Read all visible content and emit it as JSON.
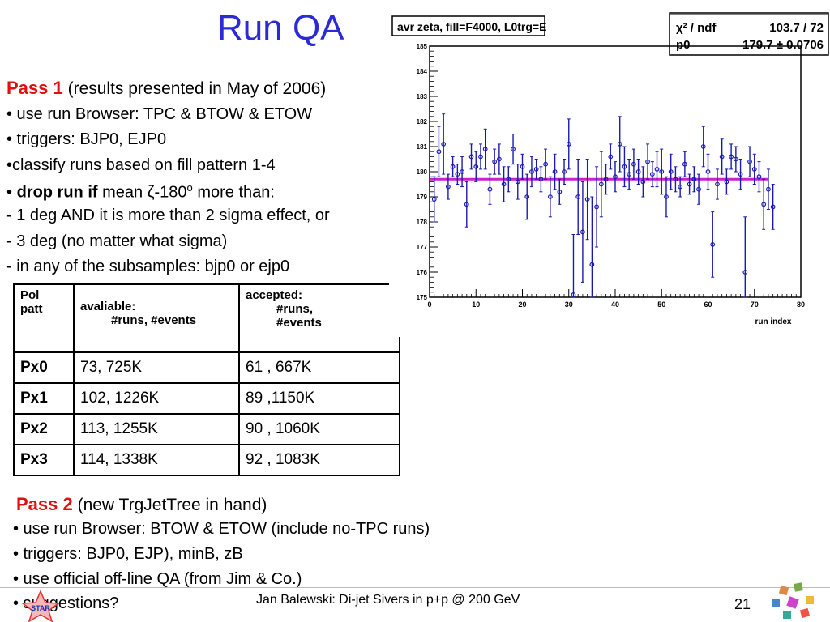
{
  "title": "Run QA",
  "pass1": {
    "heading": "Pass 1",
    "note": "(results presented in May of 2006)",
    "lines": [
      "• use run Browser: TPC & BTOW & ETOW",
      "• triggers: BJP0, EJP0",
      "•classify runs based on fill pattern 1-4"
    ],
    "drop_prefix": "• ",
    "drop_bold": "drop run if",
    "drop_mid": " mean ζ-180",
    "drop_sup": "o",
    "drop_end": " more than:",
    "criteria": [
      "- 1 deg AND it is more than 2 sigma effect, or",
      "- 3 deg (no matter what sigma)",
      "- in any of the subsamples: bjp0 or ejp0"
    ]
  },
  "table": {
    "headers": {
      "col1_a": "Pol",
      "col1_b": "patt",
      "col2_a": "avaliable:",
      "col2_b": "#runs, #events",
      "col3_a": "accepted:",
      "col3_b": "#runs,",
      "col3_c": "#events"
    },
    "rows": [
      {
        "pol": "Px0",
        "available": "73, 725K",
        "accepted": "61 , 667K"
      },
      {
        "pol": "Px1",
        "available": "102, 1226K",
        "accepted": "89 ,1150K"
      },
      {
        "pol": "Px2",
        "available": "113, 1255K",
        "accepted": "90 , 1060K"
      },
      {
        "pol": "Px3",
        "available": "114, 1338K",
        "accepted": "92 , 1083K"
      }
    ]
  },
  "pass2": {
    "heading": "Pass 2",
    "note": "(new TrgJetTree in hand)",
    "lines": [
      "• use run Browser: BTOW & ETOW (include no-TPC runs)",
      "• triggers: BJP0, EJP), minB, zB",
      "• use official off-line QA (from Jim & Co.)",
      "• suggestions?"
    ]
  },
  "plot": {
    "title_box": "avr zeta, fill=F4000, L0trg=E",
    "stats_label_1": "χ² / ndf",
    "stats_value_1": "103.7 / 72",
    "stats_label_2": "p0",
    "stats_value_2": "179.7 ± 0.0706",
    "xlabel": "run index",
    "colors": {
      "points": "#1a1ab0",
      "fit": "#cc22cc"
    }
  },
  "chart_data": {
    "type": "scatter",
    "title": "avr zeta, fill=F4000, L0trg=E",
    "xlabel": "run index",
    "ylabel": "",
    "xlim": [
      0,
      80
    ],
    "ylim": [
      175,
      185
    ],
    "xticks": [
      0,
      10,
      20,
      30,
      40,
      50,
      60,
      70,
      80
    ],
    "yticks": [
      175,
      176,
      177,
      178,
      179,
      180,
      181,
      182,
      183,
      184,
      185
    ],
    "fit": {
      "p0": 179.7,
      "p0_err": 0.0706,
      "chi2_ndf": "103.7 / 72",
      "x_range": [
        0,
        73
      ]
    },
    "points": [
      [
        1,
        178.9,
        0.9
      ],
      [
        2,
        180.8,
        1.0
      ],
      [
        3,
        181.1,
        1.2
      ],
      [
        4,
        179.4,
        0.5
      ],
      [
        5,
        180.2,
        0.4
      ],
      [
        6,
        179.9,
        0.4
      ],
      [
        7,
        180.0,
        0.6
      ],
      [
        8,
        178.7,
        0.9
      ],
      [
        9,
        180.6,
        0.5
      ],
      [
        10,
        180.2,
        0.6
      ],
      [
        11,
        180.6,
        0.5
      ],
      [
        12,
        180.9,
        0.8
      ],
      [
        13,
        179.3,
        0.6
      ],
      [
        14,
        180.4,
        0.5
      ],
      [
        15,
        180.5,
        0.6
      ],
      [
        16,
        179.5,
        0.7
      ],
      [
        17,
        179.7,
        0.5
      ],
      [
        18,
        180.9,
        0.6
      ],
      [
        19,
        179.6,
        0.7
      ],
      [
        20,
        180.2,
        0.5
      ],
      [
        21,
        179.0,
        0.9
      ],
      [
        22,
        180.0,
        0.6
      ],
      [
        23,
        180.1,
        0.4
      ],
      [
        24,
        179.7,
        0.5
      ],
      [
        25,
        180.3,
        0.6
      ],
      [
        26,
        179.0,
        0.8
      ],
      [
        27,
        180.0,
        0.7
      ],
      [
        28,
        179.2,
        0.5
      ],
      [
        29,
        180.0,
        0.5
      ],
      [
        30,
        181.1,
        1.0
      ],
      [
        31,
        175.1,
        2.4
      ],
      [
        32,
        179.0,
        1.5
      ],
      [
        33,
        177.6,
        2.0
      ],
      [
        34,
        178.9,
        1.6
      ],
      [
        35,
        176.3,
        2.7
      ],
      [
        36,
        178.6,
        1.6
      ],
      [
        37,
        179.5,
        1.3
      ],
      [
        38,
        179.7,
        0.6
      ],
      [
        39,
        180.6,
        0.5
      ],
      [
        40,
        179.8,
        0.6
      ],
      [
        41,
        181.1,
        1.1
      ],
      [
        42,
        180.2,
        0.8
      ],
      [
        43,
        179.9,
        0.6
      ],
      [
        44,
        180.3,
        0.6
      ],
      [
        45,
        180.0,
        0.5
      ],
      [
        46,
        179.6,
        0.6
      ],
      [
        47,
        180.4,
        0.7
      ],
      [
        48,
        179.9,
        0.5
      ],
      [
        49,
        180.1,
        0.7
      ],
      [
        50,
        180.0,
        0.9
      ],
      [
        51,
        179.0,
        0.8
      ],
      [
        52,
        180.0,
        0.7
      ],
      [
        53,
        179.7,
        0.5
      ],
      [
        54,
        179.4,
        0.4
      ],
      [
        55,
        180.3,
        0.5
      ],
      [
        56,
        179.5,
        0.4
      ],
      [
        57,
        179.7,
        0.5
      ],
      [
        58,
        179.3,
        0.6
      ],
      [
        59,
        181.0,
        0.8
      ],
      [
        60,
        180.0,
        0.7
      ],
      [
        61,
        177.1,
        1.3
      ],
      [
        62,
        179.5,
        0.6
      ],
      [
        63,
        180.6,
        0.7
      ],
      [
        64,
        179.6,
        0.5
      ],
      [
        65,
        180.6,
        0.5
      ],
      [
        66,
        180.5,
        0.5
      ],
      [
        67,
        179.9,
        0.6
      ],
      [
        68,
        176.0,
        2.2
      ],
      [
        69,
        180.4,
        0.6
      ],
      [
        70,
        180.1,
        0.6
      ],
      [
        71,
        179.8,
        0.6
      ],
      [
        72,
        178.7,
        1.0
      ],
      [
        73,
        179.3,
        0.8
      ],
      [
        74,
        178.6,
        0.9
      ]
    ]
  },
  "footer": {
    "text": "Jan Balewski: Di-jet Sivers in p+p @ 200 GeV",
    "page": "21",
    "star_label": "STAR"
  }
}
